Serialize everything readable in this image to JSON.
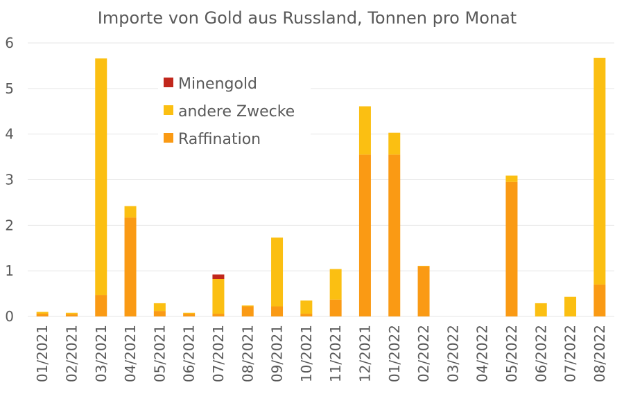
{
  "chart_data": {
    "type": "bar",
    "stacked": true,
    "title": "Importe von Gold aus Russland, Tonnen pro Monat",
    "xlabel": "",
    "ylabel": "",
    "ylim": [
      0,
      6
    ],
    "yticks": [
      "0",
      "1",
      "2",
      "3",
      "4",
      "5",
      "6"
    ],
    "grid": true,
    "legend_position": "top-left inside",
    "categories": [
      "01/2021",
      "02/2021",
      "03/2021",
      "04/2021",
      "05/2021",
      "06/2021",
      "07/2021",
      "08/2021",
      "09/2021",
      "10/2021",
      "11/2021",
      "12/2021",
      "01/2022",
      "02/2022",
      "03/2022",
      "04/2022",
      "05/2022",
      "06/2022",
      "07/2022",
      "08/2022"
    ],
    "series": [
      {
        "name": "Raffination",
        "color": "#fa9a14",
        "values": [
          0.06,
          0.05,
          0.47,
          2.17,
          0.12,
          0.06,
          0.06,
          0.22,
          0.22,
          0.06,
          0.37,
          3.55,
          3.55,
          1.1,
          0,
          0,
          2.95,
          0,
          0,
          0.7
        ]
      },
      {
        "name": "andere Zwecke",
        "color": "#fbbf12",
        "values": [
          0.04,
          0.03,
          5.19,
          0.25,
          0.17,
          0.02,
          0.76,
          0.02,
          1.51,
          0.29,
          0.67,
          1.06,
          0.48,
          0.01,
          0,
          0,
          0.14,
          0.29,
          0.43,
          4.97
        ]
      },
      {
        "name": "Minengold",
        "color": "#c1271c",
        "values": [
          0,
          0,
          0,
          0,
          0,
          0,
          0.1,
          0,
          0,
          0,
          0,
          0,
          0,
          0,
          0,
          0,
          0,
          0,
          0,
          0
        ]
      }
    ],
    "legend_order": [
      "Minengold",
      "andere Zwecke",
      "Raffination"
    ]
  }
}
